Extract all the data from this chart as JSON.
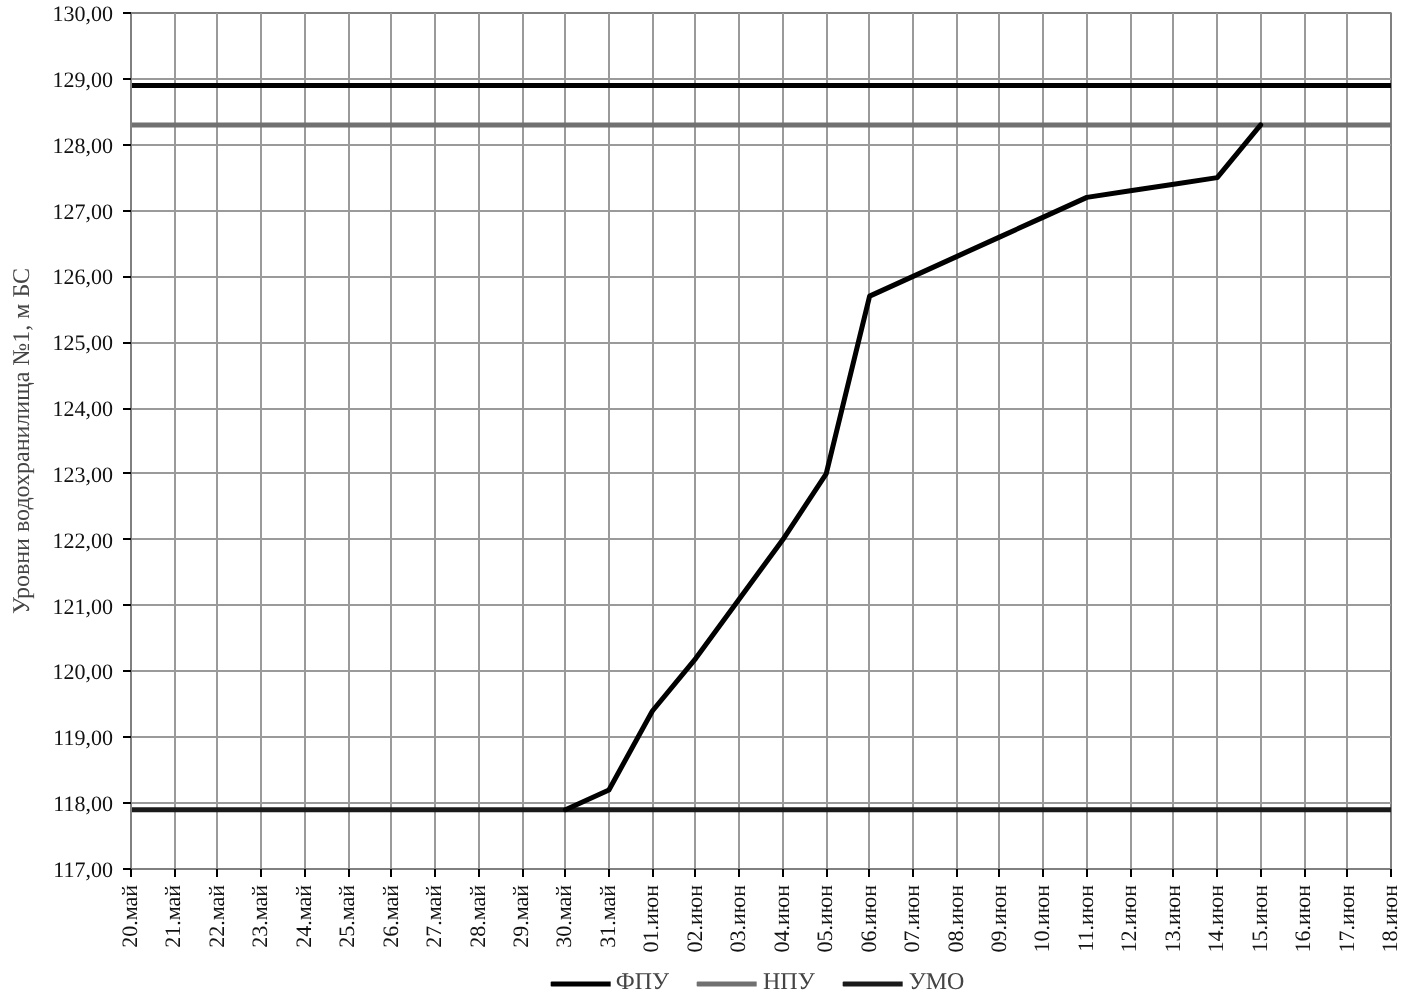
{
  "chart_data": {
    "type": "line",
    "ylabel": "Уровни водохранилища №1, м БС",
    "categories": [
      "20.май",
      "21.май",
      "22.май",
      "23.май",
      "24.май",
      "25.май",
      "26.май",
      "27.май",
      "28.май",
      "29.май",
      "30.май",
      "31.май",
      "01.июн",
      "02.июн",
      "03.июн",
      "04.июн",
      "05.июн",
      "06.июн",
      "07.июн",
      "08.июн",
      "09.июн",
      "10.июн",
      "11.июн",
      "12.июн",
      "13.июн",
      "14.июн",
      "15.июн",
      "16.июн",
      "17.июн",
      "18.июн"
    ],
    "ylim": [
      117,
      130
    ],
    "yticks": [
      {
        "value": 117,
        "label": "117,00"
      },
      {
        "value": 118,
        "label": "118,00"
      },
      {
        "value": 119,
        "label": "119,00"
      },
      {
        "value": 120,
        "label": "120,00"
      },
      {
        "value": 121,
        "label": "121,00"
      },
      {
        "value": 122,
        "label": "122,00"
      },
      {
        "value": 123,
        "label": "123,00"
      },
      {
        "value": 124,
        "label": "124,00"
      },
      {
        "value": 125,
        "label": "125,00"
      },
      {
        "value": 126,
        "label": "126,00"
      },
      {
        "value": 127,
        "label": "127,00"
      },
      {
        "value": 128,
        "label": "128,00"
      },
      {
        "value": 129,
        "label": "129,00"
      },
      {
        "value": 130,
        "label": "130,00"
      }
    ],
    "grid": true,
    "legend": "bottom",
    "line_style": "solid",
    "series": [
      {
        "name": "ФПУ",
        "color": "#000000",
        "values": [
          128.9,
          128.9,
          128.9,
          128.9,
          128.9,
          128.9,
          128.9,
          128.9,
          128.9,
          128.9,
          128.9,
          128.9,
          128.9,
          128.9,
          128.9,
          128.9,
          128.9,
          128.9,
          128.9,
          128.9,
          128.9,
          128.9,
          128.9,
          128.9,
          128.9,
          128.9,
          128.9,
          128.9,
          128.9,
          128.9
        ]
      },
      {
        "name": "НПУ",
        "color": "#707070",
        "values": [
          128.3,
          128.3,
          128.3,
          128.3,
          128.3,
          128.3,
          128.3,
          128.3,
          128.3,
          128.3,
          128.3,
          128.3,
          128.3,
          128.3,
          128.3,
          128.3,
          128.3,
          128.3,
          128.3,
          128.3,
          128.3,
          128.3,
          128.3,
          128.3,
          128.3,
          128.3,
          128.3,
          128.3,
          128.3,
          128.3
        ]
      },
      {
        "name": "УМО",
        "color": "#1a1a1a",
        "values": [
          117.9,
          117.9,
          117.9,
          117.9,
          117.9,
          117.9,
          117.9,
          117.9,
          117.9,
          117.9,
          117.9,
          117.9,
          117.9,
          117.9,
          117.9,
          117.9,
          117.9,
          117.9,
          117.9,
          117.9,
          117.9,
          117.9,
          117.9,
          117.9,
          117.9,
          117.9,
          117.9,
          117.9,
          117.9,
          117.9
        ]
      },
      {
        "color": "#000000",
        "values": [
          null,
          null,
          null,
          null,
          null,
          null,
          null,
          null,
          null,
          null,
          117.9,
          118.2,
          119.4,
          120.2,
          121.1,
          122.0,
          123.0,
          125.7,
          126.0,
          126.3,
          126.6,
          126.9,
          127.2,
          127.3,
          127.4,
          127.5,
          128.3,
          null,
          null,
          null
        ]
      }
    ]
  }
}
